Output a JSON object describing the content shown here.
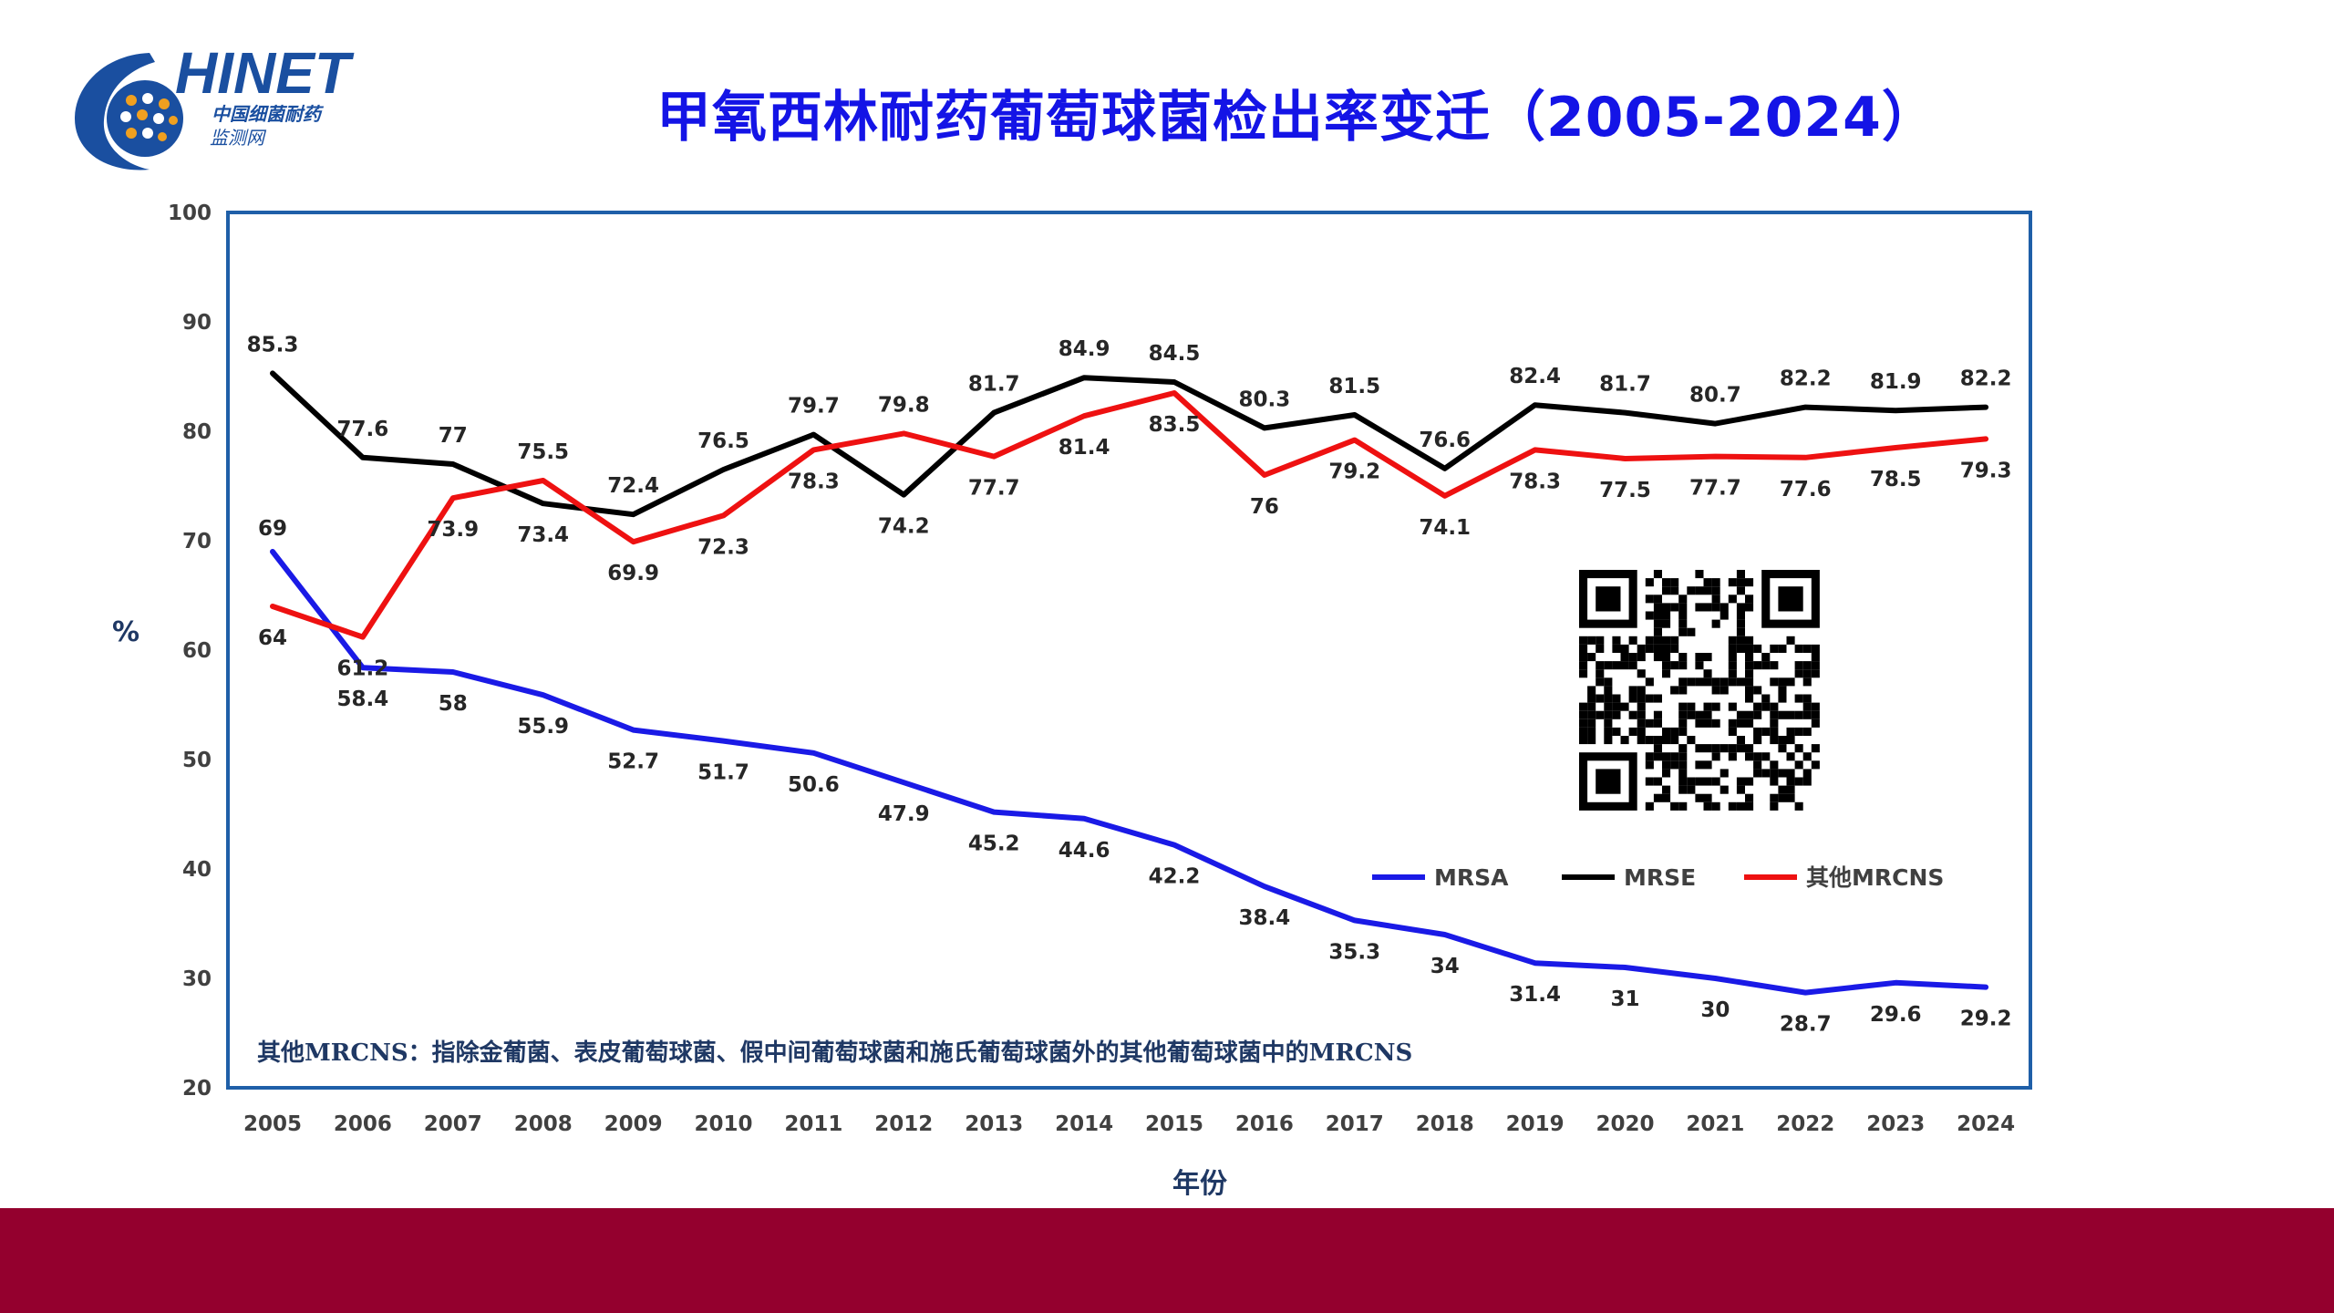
{
  "logo": {
    "brand": "HINET",
    "subtitle_line1": "中国细菌耐药",
    "subtitle_line2": "监测网"
  },
  "chart_data": {
    "type": "line",
    "title": "甲氧西林耐药葡萄球菌检出率变迁（2005-2024）",
    "xlabel": "年份",
    "ylabel": "%",
    "ylim": [
      20,
      100
    ],
    "yticks": [
      20,
      30,
      40,
      50,
      60,
      70,
      80,
      90,
      100
    ],
    "grid": false,
    "legend_position": "lower-right",
    "categories": [
      "2005",
      "2006",
      "2007",
      "2008",
      "2009",
      "2010",
      "2011",
      "2012",
      "2013",
      "2014",
      "2015",
      "2016",
      "2017",
      "2018",
      "2019",
      "2020",
      "2021",
      "2022",
      "2023",
      "2024"
    ],
    "series": [
      {
        "name": "MRSA",
        "color": "#1a1ae6",
        "values": [
          69,
          58.4,
          58,
          55.9,
          52.7,
          51.7,
          50.6,
          47.9,
          45.2,
          44.6,
          42.2,
          38.4,
          35.3,
          34,
          31.4,
          31,
          30,
          28.7,
          29.6,
          29.2
        ]
      },
      {
        "name": "MRSE",
        "color": "#000000",
        "values": [
          85.3,
          77.6,
          77,
          73.4,
          72.4,
          76.5,
          79.7,
          74.2,
          81.7,
          84.9,
          84.5,
          80.3,
          81.5,
          76.6,
          82.4,
          81.7,
          80.7,
          82.2,
          81.9,
          82.2
        ]
      },
      {
        "name": "其他MRCNS",
        "color": "#ee1111",
        "values": [
          64,
          61.2,
          73.9,
          75.5,
          69.9,
          72.3,
          78.3,
          79.8,
          77.7,
          81.4,
          83.5,
          76,
          79.2,
          74.1,
          78.3,
          77.5,
          77.7,
          77.6,
          78.5,
          79.3
        ]
      }
    ],
    "annotation": "其他MRCNS：指除金葡菌、表皮葡萄球菌、假中间葡萄球菌和施氏葡萄球菌外的其他葡萄球菌中的MRCNS"
  },
  "colors": {
    "title": "#1414e6",
    "frame": "#1f5fa8",
    "footer_band": "#94002e",
    "logo_blue": "#1a4fa0",
    "logo_orange": "#f0a020"
  }
}
